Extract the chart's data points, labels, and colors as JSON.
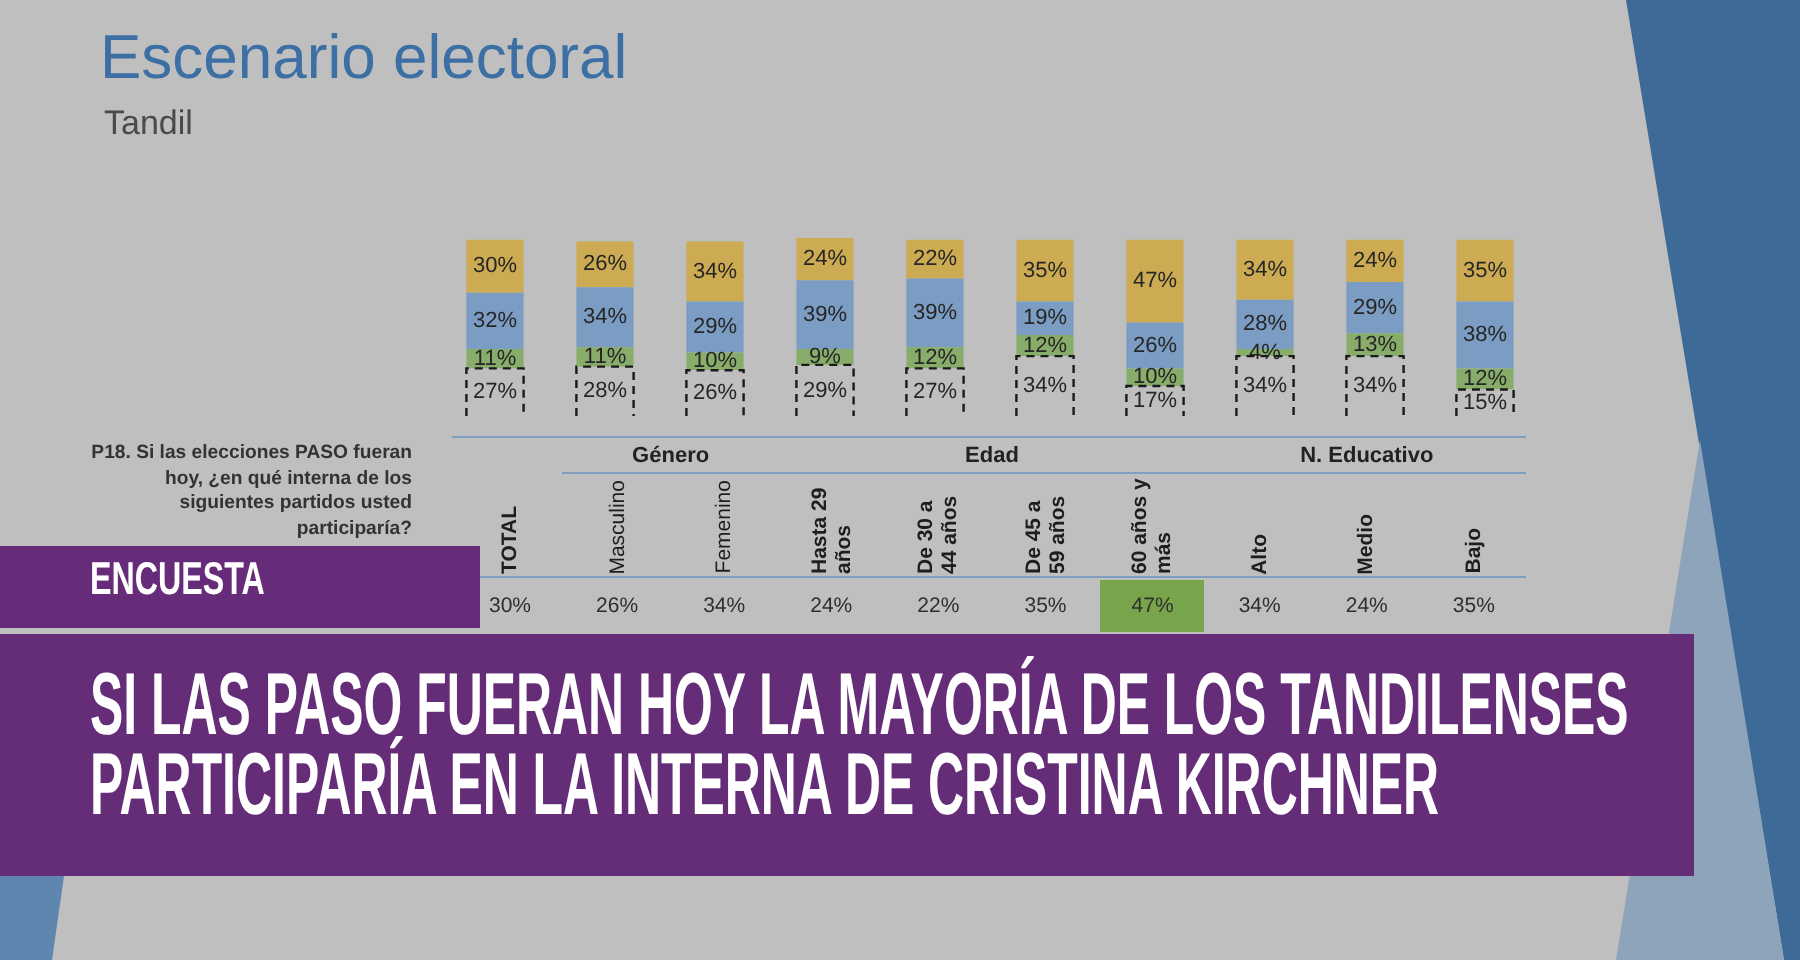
{
  "chart_data": {
    "type": "bar",
    "title": "Escenario electoral",
    "subtitle": "Tandil",
    "stacked": true,
    "categories": [
      "TOTAL",
      "Masculino",
      "Femenino",
      "Hasta 29 años",
      "De 30 a 44 años",
      "De 45 a 59 años",
      "60 años y más",
      "Alto",
      "Medio",
      "Bajo"
    ],
    "series": [
      {
        "color": "#bfbfbf",
        "line_style": "dashed",
        "values": [
          27,
          28,
          26,
          29,
          27,
          34,
          17,
          34,
          34,
          15
        ],
        "value_labels": [
          "27%",
          "28%",
          "26%",
          "29%",
          "27%",
          "34%",
          "17%",
          "34%",
          "34%",
          "15%"
        ]
      },
      {
        "color": "#88ad6a",
        "values": [
          11,
          11,
          10,
          9,
          12,
          12,
          10,
          4,
          13,
          12
        ],
        "value_labels": [
          "11%",
          "11%",
          "10%",
          "9%",
          "12%",
          "12%",
          "10%",
          "4%",
          "13%",
          "12%"
        ]
      },
      {
        "color": "#7b9dc3",
        "values": [
          32,
          34,
          29,
          39,
          39,
          19,
          26,
          28,
          29,
          38
        ],
        "value_labels": [
          "32%",
          "34%",
          "29%",
          "39%",
          "39%",
          "19%",
          "26%",
          "28%",
          "29%",
          "38%"
        ]
      },
      {
        "color": "#cdab52",
        "values": [
          30,
          26,
          34,
          24,
          22,
          35,
          47,
          34,
          24,
          35
        ],
        "value_labels": [
          "30%",
          "26%",
          "34%",
          "24%",
          "22%",
          "35%",
          "47%",
          "34%",
          "24%",
          "35%"
        ]
      }
    ],
    "annotations": [
      "P18. Si las elecciones PASO fueran hoy, ¿en qué interna de los siguientes partidos usted participaría?",
      "Género",
      "Edad",
      "N. Educativo",
      "ENCUESTA",
      "SI LAS PASO FUERAN HOY LA MAYORÍA DE LOS TANDILENSES PARTICIPARÍA EN LA INTERNA DE CRISTINA KIRCHNER"
    ]
  }
}
